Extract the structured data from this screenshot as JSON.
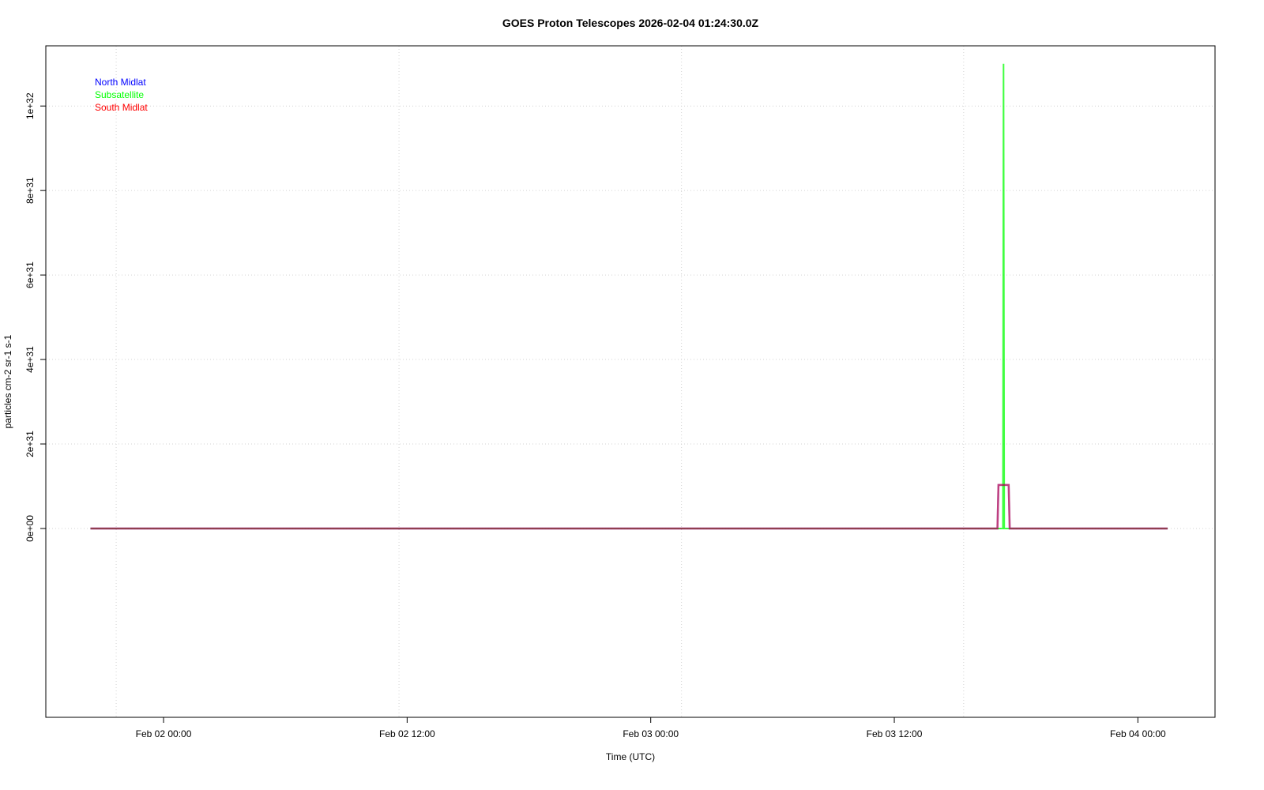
{
  "chart_data": {
    "type": "line",
    "title": "GOES Proton Telescopes  2026-02-04 01:24:30.0Z",
    "xlabel": "Time (UTC)",
    "ylabel": "particles cm-2 sr-1 s-1",
    "xlim": [
      "2026-02-01T18:12:00Z",
      "2026-02-04T03:48:00Z"
    ],
    "ylim": [
      -4.47e+31,
      1.1425e+32
    ],
    "x_ticks": [
      {
        "t": "2026-02-02T00:00:00Z",
        "label": "Feb 02 00:00"
      },
      {
        "t": "2026-02-02T12:00:00Z",
        "label": "Feb 02 12:00"
      },
      {
        "t": "2026-02-03T00:00:00Z",
        "label": "Feb 03 00:00"
      },
      {
        "t": "2026-02-03T12:00:00Z",
        "label": "Feb 03 12:00"
      },
      {
        "t": "2026-02-04T00:00:00Z",
        "label": "Feb 04 00:00"
      }
    ],
    "y_ticks": [
      {
        "v": 0,
        "label": "0e+00"
      },
      {
        "v": 2e+31,
        "label": "2e+31"
      },
      {
        "v": 4e+31,
        "label": "4e+31"
      },
      {
        "v": 6e+31,
        "label": "6e+31"
      },
      {
        "v": 8e+31,
        "label": "8e+31"
      },
      {
        "v": 1e+32,
        "label": "1e+32"
      }
    ],
    "x_grid": [
      "2026-02-01T21:40:00Z",
      "2026-02-02T11:36:00Z",
      "2026-02-03T01:31:00Z",
      "2026-02-03T15:25:00Z"
    ],
    "grid": true,
    "legend_position": "top-left",
    "series": [
      {
        "name": "North Midlat",
        "color": "#0000ff",
        "points": [
          [
            "2026-02-01T20:24:00Z",
            0
          ],
          [
            "2026-02-03T17:05:00Z",
            0
          ],
          [
            "2026-02-03T17:08:00Z",
            1.03e+31
          ],
          [
            "2026-02-03T17:38:00Z",
            1.03e+31
          ],
          [
            "2026-02-03T17:41:00Z",
            0
          ],
          [
            "2026-02-04T01:28:00Z",
            0
          ]
        ]
      },
      {
        "name": "Subsatellite",
        "color": "#00ff00",
        "points": [
          [
            "2026-02-01T20:24:00Z",
            0
          ],
          [
            "2026-02-03T17:21:00Z",
            0
          ],
          [
            "2026-02-03T17:23:00Z",
            1.1e+32
          ],
          [
            "2026-02-03T17:25:00Z",
            0
          ],
          [
            "2026-02-04T01:28:00Z",
            0
          ]
        ]
      },
      {
        "name": "South Midlat",
        "color": "#ff0000",
        "points": [
          [
            "2026-02-01T20:24:00Z",
            0
          ],
          [
            "2026-02-03T17:05:00Z",
            0
          ],
          [
            "2026-02-03T17:08:00Z",
            1.03e+31
          ],
          [
            "2026-02-03T17:38:00Z",
            1.03e+31
          ],
          [
            "2026-02-03T17:41:00Z",
            0
          ],
          [
            "2026-02-04T01:28:00Z",
            0
          ]
        ]
      }
    ]
  }
}
